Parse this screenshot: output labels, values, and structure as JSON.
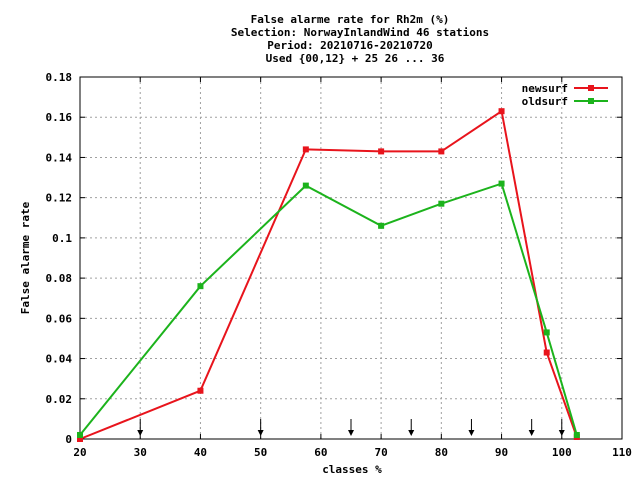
{
  "chart_data": {
    "type": "line",
    "title": [
      "False alarme rate  for Rh2m (%)",
      "Selection: NorwayInlandWind     46 stations",
      "Period: 20210716-20210720",
      "Used {00,12} + 25 26 ... 36"
    ],
    "xlabel": "classes %",
    "ylabel": "False alarme rate",
    "xlim": [
      20,
      110
    ],
    "ylim": [
      0,
      0.18
    ],
    "xticks": [
      20,
      30,
      40,
      50,
      60,
      70,
      80,
      90,
      100,
      110
    ],
    "xtick_labels": [
      "20",
      "30",
      "40",
      "50",
      "60",
      "70",
      "80",
      "90",
      "100",
      "110"
    ],
    "yticks": [
      0,
      0.02,
      0.04,
      0.06,
      0.08,
      0.1,
      0.12,
      0.14,
      0.16,
      0.18
    ],
    "ytick_labels": [
      "0",
      "0.02",
      "0.04",
      "0.06",
      "0.08",
      "0.1",
      "0.12",
      "0.14",
      "0.16",
      "0.18"
    ],
    "grid": true,
    "legend_position": "top-right",
    "series": [
      {
        "name": "newsurf",
        "color": "#e8141c",
        "x": [
          20,
          40,
          57.5,
          70,
          80,
          90,
          97.5,
          102.5
        ],
        "y": [
          0.0,
          0.024,
          0.144,
          0.143,
          0.143,
          0.163,
          0.043,
          0.001
        ]
      },
      {
        "name": "oldsurf",
        "color": "#1cb31c",
        "x": [
          20,
          40,
          57.5,
          70,
          80,
          90,
          97.5,
          102.5
        ],
        "y": [
          0.002,
          0.076,
          0.126,
          0.106,
          0.117,
          0.127,
          0.053,
          0.002
        ]
      }
    ],
    "arrow_markers_x": [
      30,
      50,
      65,
      75,
      85,
      95,
      100
    ]
  }
}
